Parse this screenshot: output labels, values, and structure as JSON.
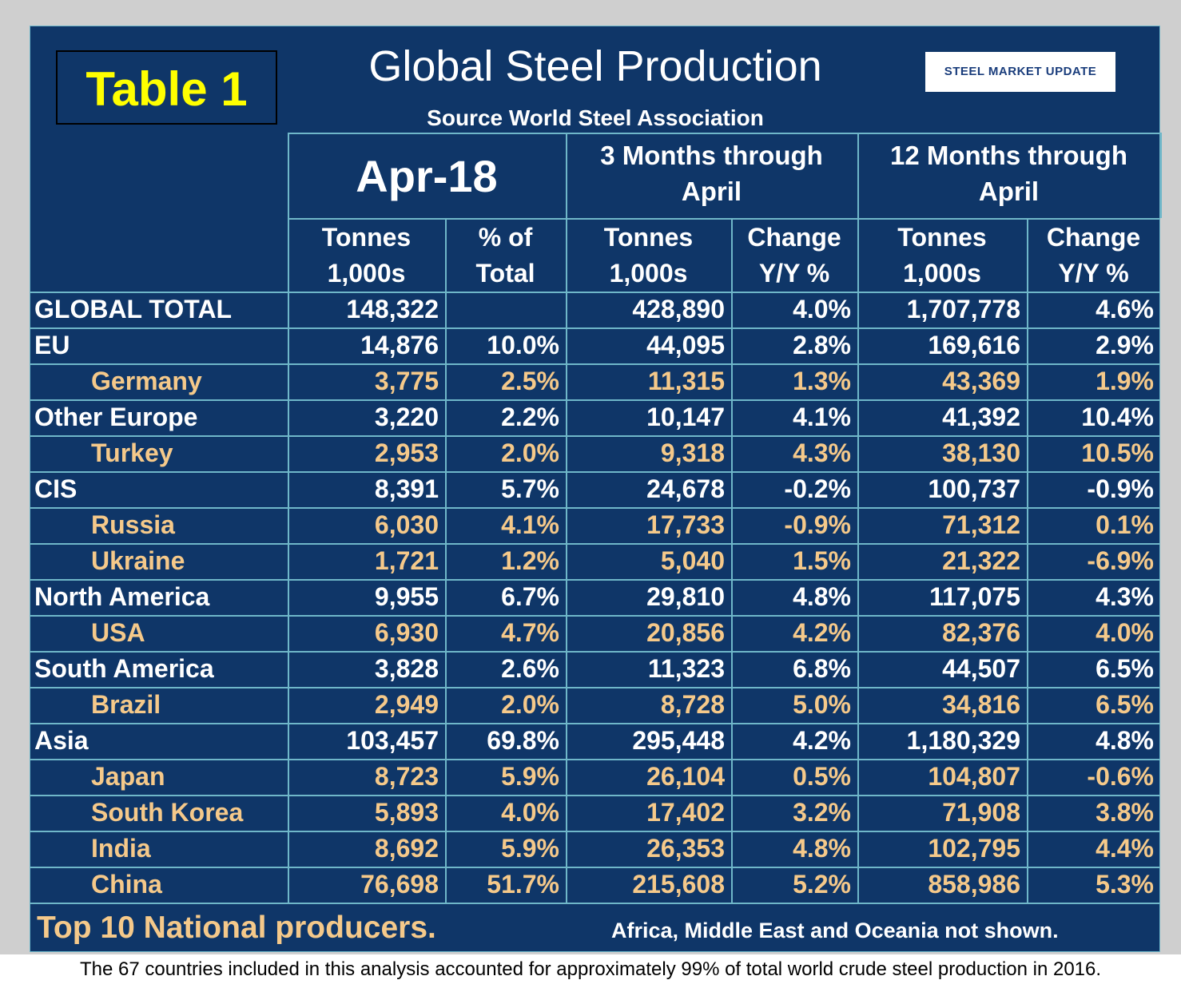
{
  "header": {
    "badge": "Table 1",
    "title": "Global Steel Production",
    "source": "Source World Steel Association",
    "logo": "STEEL MARKET UPDATE"
  },
  "table": {
    "groups": [
      [
        "Apr-18"
      ],
      [
        "3 Months through",
        "April"
      ],
      [
        "12 Months through",
        "April"
      ]
    ],
    "columns": [
      [
        "Tonnes",
        "1,000s"
      ],
      [
        "% of",
        "Total"
      ],
      [
        "Tonnes",
        "1,000s"
      ],
      [
        "Change",
        "Y/Y %"
      ],
      [
        "Tonnes",
        "1,000s"
      ],
      [
        "Change",
        "Y/Y %"
      ]
    ],
    "rows": [
      {
        "kind": "region",
        "label": "GLOBAL TOTAL",
        "cells": [
          "148,322",
          null,
          "428,890",
          "4.0%",
          "1,707,778",
          "4.6%"
        ]
      },
      {
        "kind": "region",
        "label": "EU",
        "cells": [
          "14,876",
          "10.0%",
          "44,095",
          "2.8%",
          "169,616",
          "2.9%"
        ]
      },
      {
        "kind": "country",
        "label": "Germany",
        "cells": [
          "3,775",
          "2.5%",
          "11,315",
          "1.3%",
          "43,369",
          "1.9%"
        ]
      },
      {
        "kind": "region",
        "label": "Other Europe",
        "cells": [
          "3,220",
          "2.2%",
          "10,147",
          "4.1%",
          "41,392",
          "10.4%"
        ]
      },
      {
        "kind": "country",
        "label": "Turkey",
        "cells": [
          "2,953",
          "2.0%",
          "9,318",
          "4.3%",
          "38,130",
          "10.5%"
        ]
      },
      {
        "kind": "region",
        "label": "CIS",
        "cells": [
          "8,391",
          "5.7%",
          "24,678",
          "-0.2%",
          "100,737",
          "-0.9%"
        ]
      },
      {
        "kind": "country",
        "label": "Russia",
        "cells": [
          "6,030",
          "4.1%",
          "17,733",
          "-0.9%",
          "71,312",
          "0.1%"
        ]
      },
      {
        "kind": "country",
        "label": "Ukraine",
        "cells": [
          "1,721",
          "1.2%",
          "5,040",
          "1.5%",
          "21,322",
          "-6.9%"
        ]
      },
      {
        "kind": "region",
        "label": "North America",
        "cells": [
          "9,955",
          "6.7%",
          "29,810",
          "4.8%",
          "117,075",
          "4.3%"
        ]
      },
      {
        "kind": "country",
        "label": "USA",
        "cells": [
          "6,930",
          "4.7%",
          "20,856",
          "4.2%",
          "82,376",
          "4.0%"
        ]
      },
      {
        "kind": "region",
        "label": "South America",
        "cells": [
          "3,828",
          "2.6%",
          "11,323",
          "6.8%",
          "44,507",
          "6.5%"
        ]
      },
      {
        "kind": "country",
        "label": "Brazil",
        "cells": [
          "2,949",
          "2.0%",
          "8,728",
          "5.0%",
          "34,816",
          "6.5%"
        ]
      },
      {
        "kind": "region",
        "label": "Asia",
        "cells": [
          "103,457",
          "69.8%",
          "295,448",
          "4.2%",
          "1,180,329",
          "4.8%"
        ]
      },
      {
        "kind": "country",
        "label": "Japan",
        "cells": [
          "8,723",
          "5.9%",
          "26,104",
          "0.5%",
          "104,807",
          "-0.6%"
        ]
      },
      {
        "kind": "country",
        "label": "South Korea",
        "cells": [
          "5,893",
          "4.0%",
          "17,402",
          "3.2%",
          "71,908",
          "3.8%"
        ]
      },
      {
        "kind": "country",
        "label": "India",
        "cells": [
          "8,692",
          "5.9%",
          "26,353",
          "4.8%",
          "102,795",
          "4.4%"
        ]
      },
      {
        "kind": "country",
        "label": "China",
        "cells": [
          "76,698",
          "51.7%",
          "215,608",
          "5.2%",
          "858,986",
          "5.3%"
        ]
      }
    ]
  },
  "footer": {
    "left": "Top 10 National producers.",
    "right": "Africa, Middle East and Oceania not shown.",
    "note": "The 67 countries included in this analysis accounted for approximately 99% of total world crude steel production in 2016."
  }
}
